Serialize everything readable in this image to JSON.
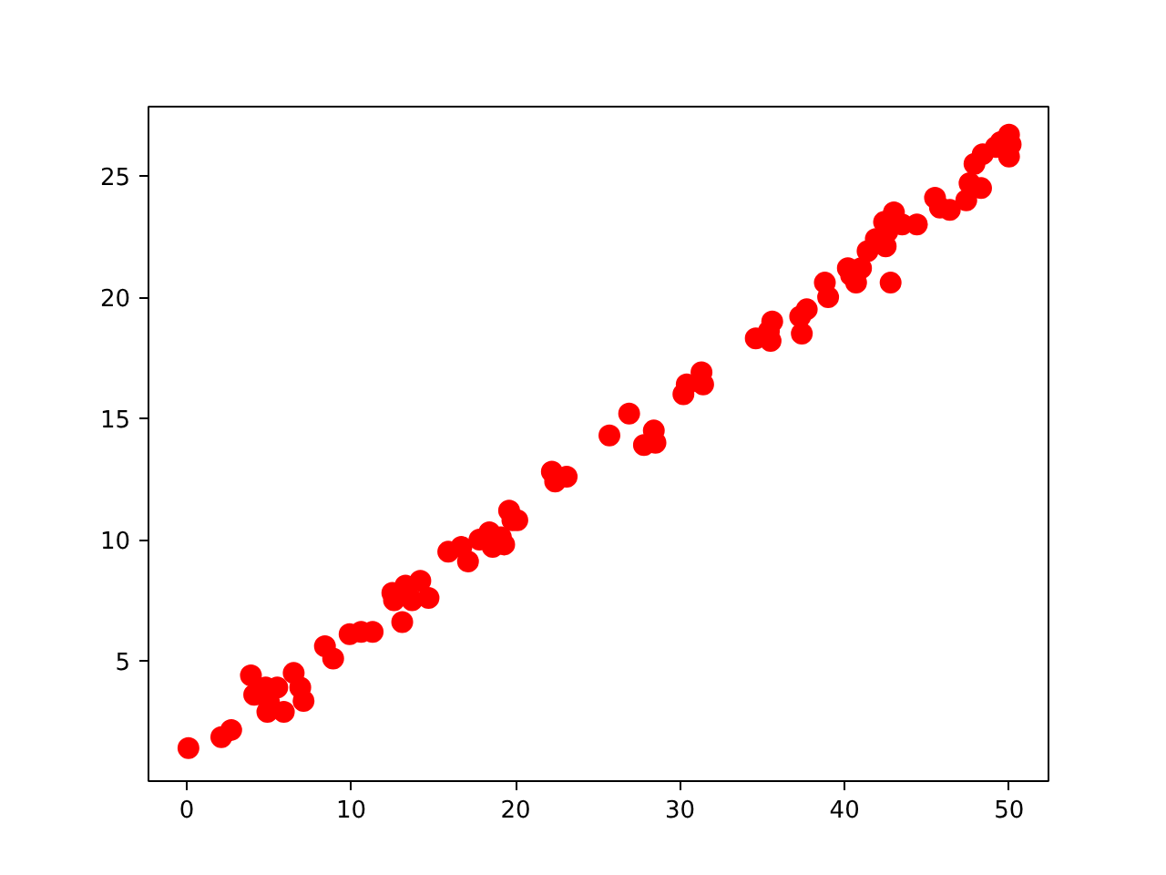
{
  "chart_data": {
    "type": "scatter",
    "marker": "circle",
    "grid": false,
    "xlim": [
      -2.33,
      52.4
    ],
    "ylim": [
      0.04,
      27.86
    ],
    "xticks": [
      0,
      10,
      20,
      30,
      40,
      50
    ],
    "yticks": [
      5,
      10,
      15,
      20,
      25
    ],
    "series": [
      {
        "color": "#ff0000",
        "x": [
          0.1,
          2.1,
          2.7,
          3.9,
          4.1,
          4.8,
          5.0,
          4.9,
          5.5,
          5.9,
          6.5,
          6.9,
          7.1,
          8.4,
          8.9,
          9.9,
          10.6,
          11.3,
          12.5,
          12.6,
          13.1,
          13.3,
          13.7,
          14.2,
          14.7,
          15.9,
          16.7,
          17.1,
          17.8,
          18.4,
          18.6,
          19.1,
          19.3,
          19.6,
          19.8,
          20.1,
          22.2,
          22.4,
          23.1,
          25.7,
          26.9,
          27.8,
          28.4,
          28.5,
          30.2,
          30.4,
          31.3,
          31.4,
          34.6,
          35.4,
          35.5,
          35.6,
          37.3,
          37.4,
          37.7,
          38.8,
          39.0,
          40.2,
          40.4,
          40.7,
          41.0,
          41.4,
          41.9,
          42.4,
          42.6,
          42.5,
          42.8,
          43.0,
          43.5,
          44.4,
          45.5,
          45.8,
          46.4,
          47.4,
          47.6,
          48.3,
          47.9,
          48.4,
          49.5,
          50.0,
          50.1,
          50.0,
          49.2
        ],
        "values": [
          1.4,
          1.85,
          2.15,
          4.4,
          3.6,
          3.9,
          3.3,
          2.9,
          3.9,
          2.9,
          4.5,
          3.9,
          3.35,
          5.6,
          5.1,
          6.1,
          6.2,
          6.2,
          7.8,
          7.5,
          6.6,
          8.1,
          7.5,
          8.3,
          7.6,
          9.5,
          9.7,
          9.1,
          10.0,
          10.3,
          9.7,
          10.1,
          9.8,
          11.2,
          10.8,
          10.8,
          12.8,
          12.4,
          12.6,
          14.3,
          15.2,
          13.9,
          14.5,
          14.0,
          16.0,
          16.4,
          16.9,
          16.4,
          18.3,
          18.6,
          18.2,
          19.0,
          19.2,
          18.5,
          19.5,
          20.6,
          20.0,
          21.2,
          20.9,
          20.6,
          21.2,
          21.9,
          22.4,
          23.1,
          22.7,
          22.1,
          20.6,
          23.5,
          23.0,
          23.0,
          24.1,
          23.7,
          23.6,
          24.0,
          24.7,
          24.5,
          25.5,
          25.9,
          26.4,
          26.7,
          26.3,
          25.8,
          26.2
        ]
      }
    ]
  }
}
